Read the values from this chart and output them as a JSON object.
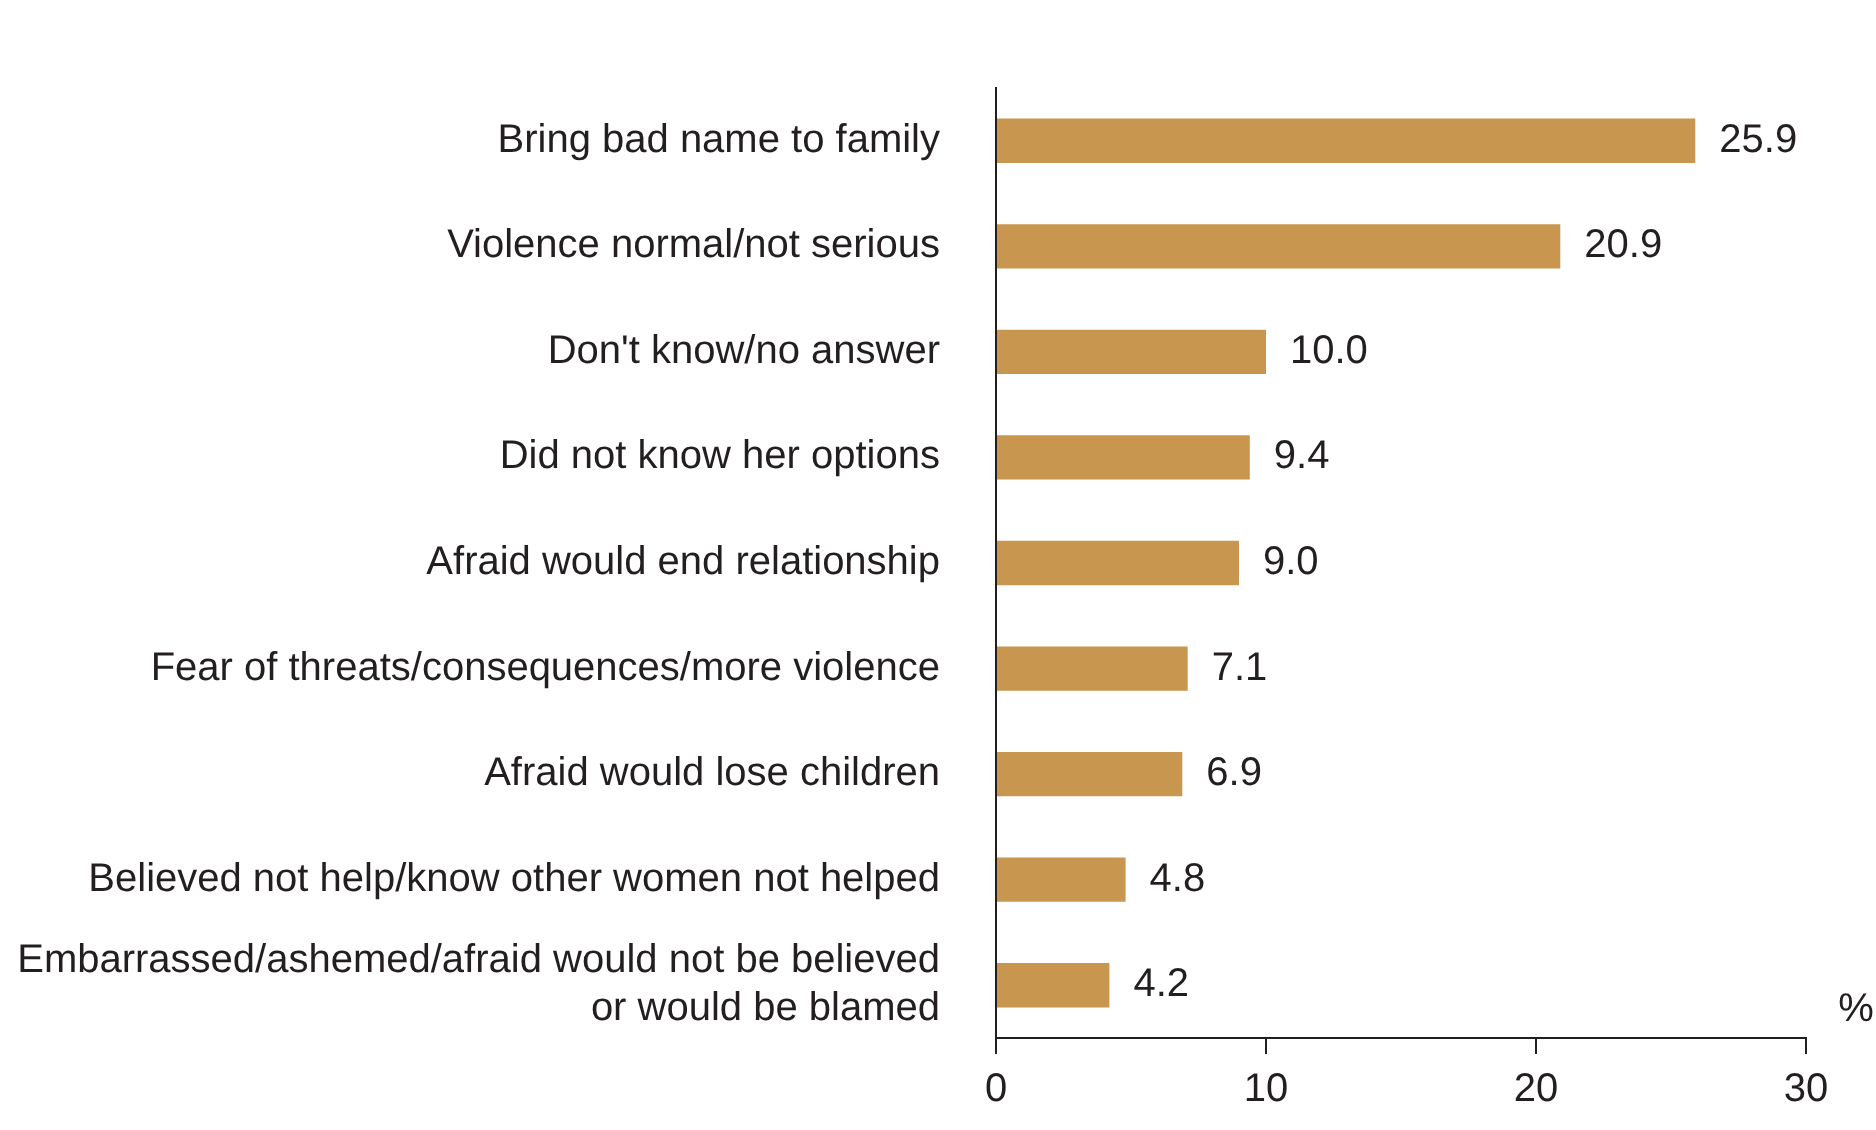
{
  "chart_data": {
    "type": "bar",
    "orientation": "horizontal",
    "xlabel": "%",
    "categories": [
      "Bring bad name to family",
      "Violence normal/not serious",
      "Don't know/no answer",
      "Did not know her options",
      "Afraid would end relationship",
      "Fear of threats/consequences/more violence",
      "Afraid would lose children",
      "Believed not help/know other women not helped",
      "Embarrassed/ashemed/afraid would not be believed or would be blamed"
    ],
    "values": [
      25.9,
      20.9,
      10.0,
      9.4,
      9.0,
      7.1,
      6.9,
      4.8,
      4.2
    ],
    "value_labels": [
      "25.9",
      "20.9",
      "10.0",
      "9.4",
      "9.0",
      "7.1",
      "6.9",
      "4.8",
      "4.2"
    ],
    "color": "#c8964f",
    "xlim": [
      0,
      30
    ],
    "xticks": [
      0,
      10,
      20,
      30
    ],
    "grid": false,
    "legend": false
  }
}
